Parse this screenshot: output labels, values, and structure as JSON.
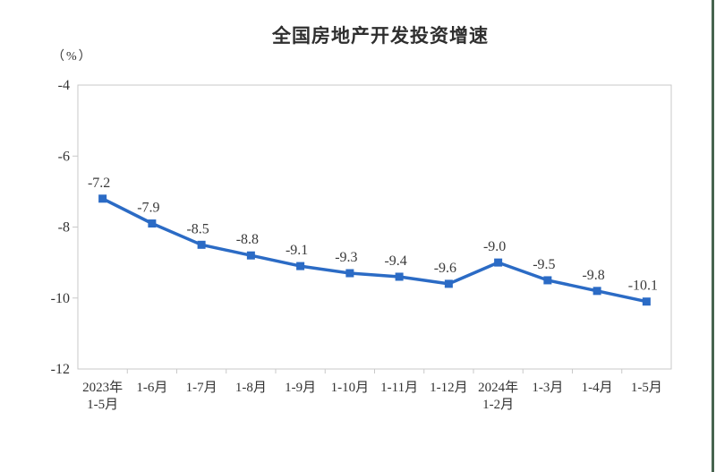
{
  "page": {
    "background": "#ffffff",
    "right_stripe_color": "#476550"
  },
  "chart_data": {
    "type": "line",
    "title": "全国房地产开发投资增速",
    "ylabel": "（%）",
    "xlabel": "",
    "categories": [
      "2023年\n1-5月",
      "1-6月",
      "1-7月",
      "1-8月",
      "1-9月",
      "1-10月",
      "1-11月",
      "1-12月",
      "2024年\n1-2月",
      "1-3月",
      "1-4月",
      "1-5月"
    ],
    "values": [
      -7.2,
      -7.9,
      -8.5,
      -8.8,
      -9.1,
      -9.3,
      -9.4,
      -9.6,
      -9.0,
      -9.5,
      -9.8,
      -10.1
    ],
    "ylim": [
      -12,
      -4
    ],
    "yticks": [
      -4,
      -6,
      -8,
      -10,
      -12
    ],
    "grid": false,
    "legend_position": "none",
    "line_color": "#2b6bc5",
    "marker": "square",
    "data_label_color": "#3a3a3a",
    "axis_text_color": "#333333",
    "axis_line_color": "#c9c9c9"
  }
}
